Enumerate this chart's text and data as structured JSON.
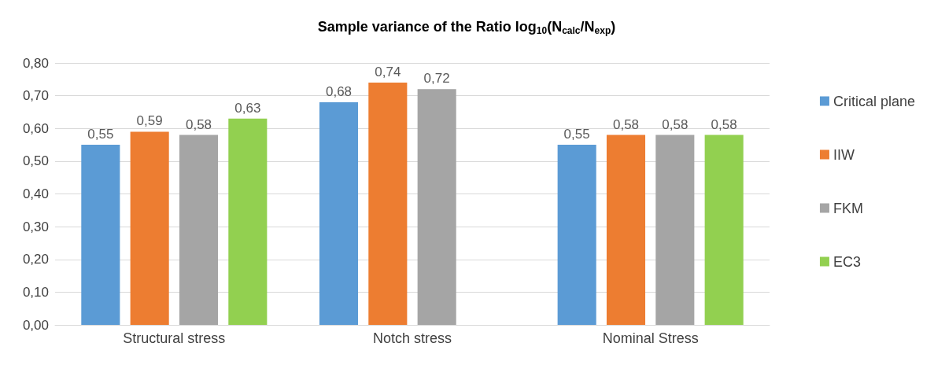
{
  "chart_data": {
    "type": "bar",
    "title": "Sample variance of the Ratio log$_{10}$(N$_{calc}$/N$_{exp}$)",
    "categories": [
      "Structural stress",
      "Notch stress",
      "Nominal Stress"
    ],
    "series": [
      {
        "name": "Critical plane",
        "color": "#5b9bd5",
        "values": [
          0.55,
          0.68,
          0.55
        ],
        "value_labels": [
          "0,55",
          "0,68",
          "0,55"
        ]
      },
      {
        "name": "IIW",
        "color": "#ed7d31",
        "values": [
          0.59,
          0.74,
          0.58
        ],
        "value_labels": [
          "0,59",
          "0,74",
          "0,58"
        ]
      },
      {
        "name": "FKM",
        "color": "#a5a5a5",
        "values": [
          0.58,
          0.72,
          0.58
        ],
        "value_labels": [
          "0,58",
          "0,72",
          "0,58"
        ]
      },
      {
        "name": "EC3",
        "color": "#92d050",
        "values": [
          0.63,
          null,
          0.58
        ],
        "value_labels": [
          "0,63",
          null,
          "0,58"
        ]
      }
    ],
    "ylim": [
      0,
      0.8
    ],
    "yticks": [
      {
        "value": 0,
        "label": "0,00"
      },
      {
        "value": 0.1,
        "label": "0,10"
      },
      {
        "value": 0.2,
        "label": "0,20"
      },
      {
        "value": 0.3,
        "label": "0,30"
      },
      {
        "value": 0.4,
        "label": "0,40"
      },
      {
        "value": 0.5,
        "label": "0,50"
      },
      {
        "value": 0.6,
        "label": "0,60"
      },
      {
        "value": 0.7,
        "label": "0,70"
      },
      {
        "value": 0.8,
        "label": "0,80"
      }
    ],
    "grid": "y",
    "legend": "right"
  }
}
